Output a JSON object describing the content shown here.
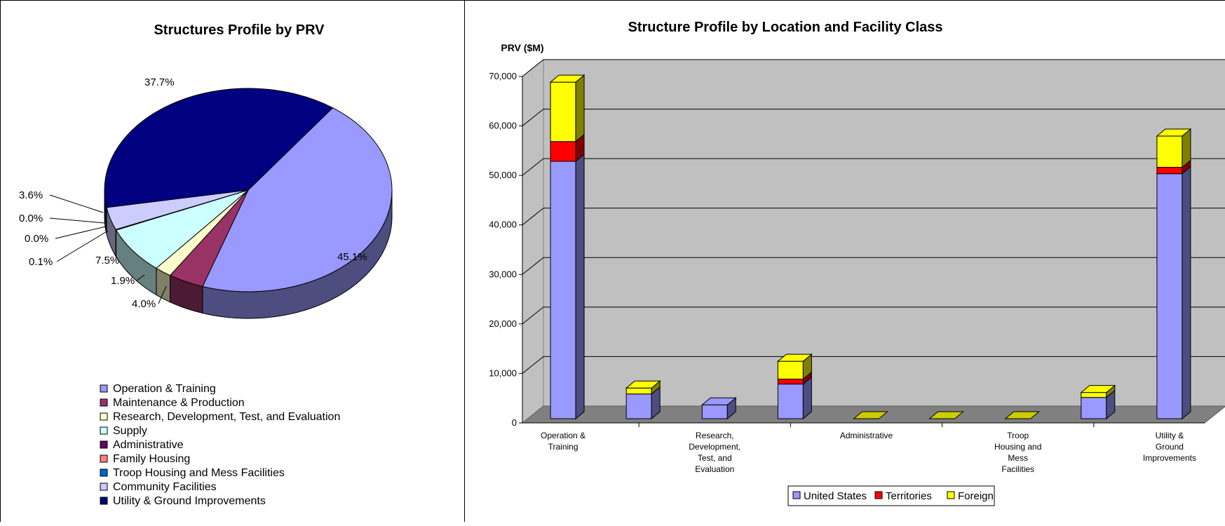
{
  "chart_data": [
    {
      "type": "pie",
      "title": "Structures Profile by PRV",
      "slices": [
        {
          "label": "Operation & Training",
          "value": 45.1,
          "value_label": "45.1%",
          "color": "#9999ff"
        },
        {
          "label": "Maintenance & Production",
          "value": 4.0,
          "value_label": "4.0%",
          "color": "#993366"
        },
        {
          "label": "Research, Development, Test, and Evaluation",
          "value": 1.9,
          "value_label": "1.9%",
          "color": "#ffffcc"
        },
        {
          "label": "Supply",
          "value": 7.5,
          "value_label": "7.5%",
          "color": "#ccffff"
        },
        {
          "label": "Administrative",
          "value": 0.1,
          "value_label": "0.1%",
          "color": "#660066"
        },
        {
          "label": "Family Housing",
          "value": 0.0,
          "value_label": "0.0%",
          "color": "#ff8080"
        },
        {
          "label": "Troop Housing and Mess Facilities",
          "value": 0.0,
          "value_label": "0.0%",
          "color": "#0066cc"
        },
        {
          "label": "Community Facilities",
          "value": 3.6,
          "value_label": "3.6%",
          "color": "#ccccff"
        },
        {
          "label": "Utility & Ground Improvements",
          "value": 37.7,
          "value_label": "37.7%",
          "color": "#000080"
        }
      ]
    },
    {
      "type": "bar",
      "stacked": true,
      "title": "Structure Profile by Location and Facility Class",
      "ylabel": "PRV ($M)",
      "ylim": [
        0,
        70000
      ],
      "yticks": [
        "0",
        "10,000",
        "20,000",
        "30,000",
        "40,000",
        "50,000",
        "60,000",
        "70,000"
      ],
      "categories": [
        [
          "Operation &",
          "Training"
        ],
        [
          ""
        ],
        [
          "Research,",
          "Development,",
          "Test, and",
          "Evaluation"
        ],
        [
          ""
        ],
        [
          "Administrative"
        ],
        [
          ""
        ],
        [
          "Troop",
          "Housing and",
          "Mess",
          "Facilities"
        ],
        [
          ""
        ],
        [
          "Utility &",
          "Ground",
          "Improvements"
        ]
      ],
      "series": [
        {
          "name": "United States",
          "color": "#9999ff",
          "values": [
            52000,
            5000,
            2800,
            7000,
            0,
            0,
            0,
            4300,
            49500
          ]
        },
        {
          "name": "Territories",
          "color": "#ff0000",
          "values": [
            4000,
            0,
            0,
            1000,
            0,
            0,
            0,
            0,
            1300
          ]
        },
        {
          "name": "Foreign",
          "color": "#ffff00",
          "values": [
            12000,
            1200,
            0,
            3600,
            0,
            0,
            0,
            1000,
            6300
          ]
        }
      ],
      "legend_position": "bottom",
      "grid": true
    }
  ]
}
